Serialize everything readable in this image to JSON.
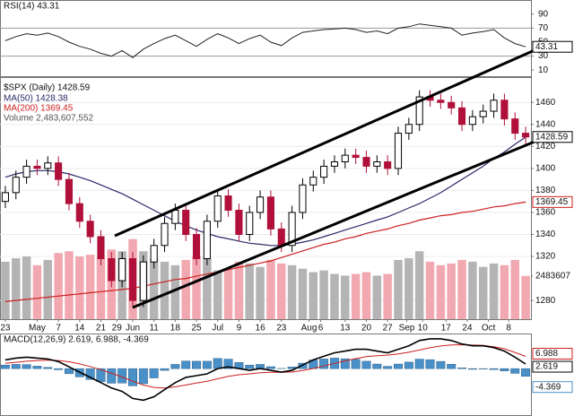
{
  "chart_data": {
    "type": "candlestick",
    "xticks": [
      {
        "value": 0,
        "label": "23"
      },
      {
        "value": 3,
        "label": "May"
      },
      {
        "value": 5,
        "label": "7"
      },
      {
        "value": 7,
        "label": "14"
      },
      {
        "value": 9,
        "label": "21"
      },
      {
        "value": 10.5,
        "label": "29"
      },
      {
        "value": 12,
        "label": "Jun"
      },
      {
        "value": 14,
        "label": "11"
      },
      {
        "value": 16,
        "label": "18"
      },
      {
        "value": 18,
        "label": "25"
      },
      {
        "value": 20,
        "label": "Jul"
      },
      {
        "value": 22,
        "label": "9"
      },
      {
        "value": 24,
        "label": "16"
      },
      {
        "value": 26,
        "label": "23"
      },
      {
        "value": 28.6,
        "label": "Aug"
      },
      {
        "value": 29.7,
        "label": "6"
      },
      {
        "value": 32,
        "label": "13"
      },
      {
        "value": 34,
        "label": "20"
      },
      {
        "value": 36,
        "label": "27"
      },
      {
        "value": 37.8,
        "label": "Sep"
      },
      {
        "value": 39.3,
        "label": "10"
      },
      {
        "value": 41.5,
        "label": "17"
      },
      {
        "value": 43.5,
        "label": "24"
      },
      {
        "value": 45.5,
        "label": "Oct"
      },
      {
        "value": 47.4,
        "label": "8"
      }
    ],
    "price": {
      "name": "$SPX (Daily) 1428.59",
      "up_color": "#000000",
      "down_color": "#b0103a",
      "ylim": [
        1263,
        1483
      ],
      "yticks": [
        1280,
        1320,
        1340,
        1360,
        1380,
        1400,
        1420,
        1440,
        1460
      ],
      "grid": true,
      "open": [
        1370,
        1378,
        1392,
        1402,
        1400,
        1405,
        1390,
        1368,
        1352,
        1338,
        1318,
        1298,
        1318,
        1280,
        1315,
        1330,
        1350,
        1362,
        1340,
        1318,
        1352,
        1375,
        1362,
        1340,
        1360,
        1374,
        1345,
        1330,
        1360,
        1385,
        1392,
        1402,
        1406,
        1412,
        1410,
        1402,
        1406,
        1400,
        1432,
        1440,
        1465,
        1462,
        1460,
        1455,
        1440,
        1447,
        1452,
        1462,
        1445,
        1432
      ],
      "high": [
        1384,
        1398,
        1408,
        1408,
        1411,
        1411,
        1396,
        1374,
        1358,
        1344,
        1324,
        1324,
        1324,
        1321,
        1336,
        1356,
        1368,
        1368,
        1346,
        1358,
        1381,
        1381,
        1368,
        1366,
        1380,
        1380,
        1351,
        1366,
        1391,
        1398,
        1408,
        1412,
        1418,
        1418,
        1416,
        1412,
        1412,
        1438,
        1446,
        1471,
        1471,
        1468,
        1466,
        1461,
        1453,
        1458,
        1468,
        1468,
        1451,
        1438
      ],
      "low": [
        1364,
        1372,
        1386,
        1394,
        1394,
        1384,
        1362,
        1346,
        1332,
        1312,
        1292,
        1292,
        1274,
        1274,
        1309,
        1324,
        1344,
        1334,
        1312,
        1312,
        1346,
        1356,
        1334,
        1334,
        1354,
        1339,
        1324,
        1324,
        1354,
        1379,
        1386,
        1396,
        1400,
        1404,
        1396,
        1396,
        1394,
        1394,
        1426,
        1434,
        1456,
        1454,
        1449,
        1434,
        1434,
        1441,
        1446,
        1439,
        1426,
        1422
      ],
      "close": [
        1378,
        1392,
        1402,
        1400,
        1405,
        1390,
        1368,
        1352,
        1338,
        1318,
        1298,
        1318,
        1280,
        1315,
        1330,
        1350,
        1362,
        1340,
        1318,
        1352,
        1375,
        1362,
        1340,
        1360,
        1374,
        1345,
        1330,
        1360,
        1385,
        1392,
        1402,
        1406,
        1412,
        1410,
        1402,
        1406,
        1400,
        1432,
        1440,
        1465,
        1462,
        1460,
        1455,
        1440,
        1447,
        1452,
        1462,
        1445,
        1432,
        1428.59
      ]
    },
    "ma50": {
      "name": "MA(50) 1428.38",
      "color": "#2a2a6a",
      "values": [
        1392,
        1395,
        1397,
        1398,
        1398,
        1397,
        1395,
        1392,
        1389,
        1385,
        1381,
        1377,
        1372,
        1367,
        1362,
        1357,
        1352,
        1348,
        1344,
        1341,
        1338,
        1336,
        1334,
        1332,
        1331,
        1330,
        1330,
        1331,
        1333,
        1335,
        1338,
        1341,
        1344,
        1347,
        1350,
        1353,
        1356,
        1360,
        1364,
        1368,
        1373,
        1378,
        1384,
        1390,
        1396,
        1402,
        1409,
        1415,
        1422,
        1428.38
      ]
    },
    "ma200": {
      "name": "MA(200) 1369.45",
      "color": "#cc2020",
      "values": [
        1279,
        1280,
        1281,
        1282,
        1283,
        1284,
        1285,
        1286,
        1287,
        1288,
        1289,
        1290,
        1291,
        1293,
        1295,
        1297,
        1299,
        1300,
        1302,
        1304,
        1306,
        1308,
        1310,
        1312,
        1314,
        1316,
        1319,
        1322,
        1325,
        1328,
        1331,
        1333,
        1336,
        1338,
        1341,
        1343,
        1345,
        1348,
        1350,
        1353,
        1355,
        1357,
        1358,
        1360,
        1361,
        1363,
        1365,
        1366,
        1368,
        1369.45
      ]
    },
    "volume": {
      "name": "Volume 2,483,607,552",
      "up_color": "#b4b4b4",
      "down_color": "#f2a8b0",
      "vlim": [
        0,
        13900000000
      ],
      "vticks": [
        {
          "value": 2483607552,
          "label": "2483607"
        }
      ],
      "values": [
        3300000000,
        3500000000,
        3600000000,
        3100000000,
        3400000000,
        3800000000,
        3900000000,
        3600000000,
        3700000000,
        3500000000,
        4000000000,
        3900000000,
        4600000000,
        3900000000,
        3500000000,
        3300000000,
        3100000000,
        3400000000,
        3600000000,
        3500000000,
        2800000000,
        2900000000,
        3300000000,
        3200000000,
        3000000000,
        3400000000,
        3200000000,
        3100000000,
        2900000000,
        2700000000,
        2800000000,
        2600000000,
        2500000000,
        2600000000,
        2700000000,
        2500000000,
        2600000000,
        3400000000,
        3500000000,
        3900000000,
        3300000000,
        3100000000,
        3200000000,
        3400000000,
        3300000000,
        3000000000,
        3200000000,
        3100000000,
        3400000000,
        2483607552
      ]
    },
    "rsi": {
      "name": "RSI(14) 43.31",
      "color": "#222222",
      "ylim": [
        0,
        100
      ],
      "yticks": [
        10,
        30,
        50,
        70,
        90
      ],
      "bands": [
        30,
        70
      ],
      "values": [
        52,
        58,
        62,
        60,
        63,
        58,
        50,
        44,
        40,
        34,
        30,
        38,
        28,
        40,
        48,
        55,
        60,
        52,
        44,
        54,
        62,
        56,
        48,
        55,
        60,
        50,
        45,
        56,
        64,
        66,
        68,
        69,
        70,
        68,
        64,
        66,
        62,
        70,
        72,
        76,
        74,
        72,
        70,
        60,
        63,
        65,
        68,
        56,
        48,
        43.31
      ]
    },
    "macd": {
      "name": "MACD(12,26,9) 2.619, 6.988, -4.369",
      "ylim": [
        -27,
        20
      ],
      "macd_color": "#000000",
      "signal_color": "#cc2020",
      "histogram_color": "#4a90c8",
      "macd": [
        5,
        6,
        6.5,
        6,
        5.5,
        4,
        1,
        -2,
        -5,
        -8,
        -11,
        -13,
        -17,
        -18,
        -16,
        -12,
        -8,
        -5,
        -4,
        -3,
        0,
        1,
        0,
        -1,
        0,
        -1,
        -2,
        -1,
        2,
        5,
        7,
        9,
        10,
        11,
        11,
        10,
        9,
        11,
        13,
        16,
        17,
        17,
        16,
        14,
        13,
        13,
        12,
        10,
        6.5,
        2.619
      ],
      "signal": [
        3,
        3.6,
        4.2,
        4.6,
        4.8,
        4.6,
        3.9,
        2.7,
        1.2,
        -0.6,
        -2.7,
        -4.8,
        -7.2,
        -9.4,
        -10.7,
        -11,
        -10.4,
        -9.3,
        -8.2,
        -7.2,
        -5.8,
        -4.4,
        -3.5,
        -3,
        -2.4,
        -2.1,
        -2.1,
        -1.9,
        -1.1,
        0.1,
        1.5,
        3,
        4.4,
        5.7,
        6.8,
        7.4,
        7.7,
        8.4,
        9.3,
        10.6,
        11.9,
        12.9,
        13.5,
        13.6,
        13.4,
        13.2,
        12.5,
        11.3,
        9.2,
        6.988
      ],
      "histogram": [
        2,
        2.4,
        2.3,
        1.4,
        0.7,
        -0.6,
        -2.9,
        -4.7,
        -6.2,
        -7.4,
        -8.3,
        -8.2,
        -9.8,
        -8.6,
        -5.3,
        -1,
        2.4,
        4.3,
        4.2,
        4.2,
        5.8,
        5.4,
        3.5,
        2,
        2.4,
        1.1,
        0.1,
        0.9,
        3.1,
        4.9,
        5.5,
        6,
        5.6,
        5.3,
        4.2,
        2.6,
        1.3,
        2.6,
        3.7,
        5.4,
        5.1,
        4.1,
        2.5,
        0.4,
        -0.4,
        -0.2,
        -0.5,
        -1.3,
        -2.7,
        -4.369
      ]
    }
  }
}
